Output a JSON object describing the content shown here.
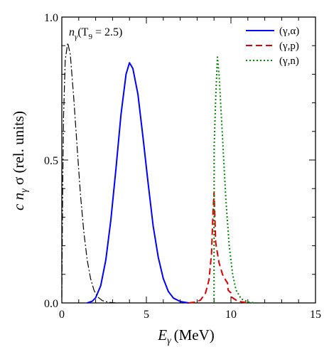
{
  "chart_data": {
    "type": "line",
    "title": "",
    "xlabel": {
      "symbol": "E",
      "subscript": "γ",
      "unit": "(MeV)"
    },
    "ylabel": {
      "parts": [
        "c n",
        "γ",
        " σ (rel. units)"
      ]
    },
    "xlim": [
      0,
      15
    ],
    "ylim": [
      0,
      1.0
    ],
    "xticks": [
      {
        "value": 0,
        "label": "0"
      },
      {
        "value": 5,
        "label": "5"
      },
      {
        "value": 10,
        "label": "10"
      },
      {
        "value": 15,
        "label": "15"
      }
    ],
    "yticks": [
      {
        "value": 0,
        "label": "0.0"
      },
      {
        "value": 0.5,
        "label": "0.5"
      },
      {
        "value": 1.0,
        "label": "1.0"
      }
    ],
    "grid": false,
    "legend": "top-right",
    "annotation": {
      "text_n": "n",
      "text_sub": "γ",
      "text_open": "(T",
      "text_sub2": "9",
      "text_close": " = 2.5)"
    },
    "series": [
      {
        "name": "(γ,α)",
        "color": "#0000ff",
        "dash": "none",
        "in_legend": true,
        "points": [
          [
            1.5,
            0.0
          ],
          [
            1.8,
            0.006
          ],
          [
            2.0,
            0.018
          ],
          [
            2.3,
            0.06
          ],
          [
            2.6,
            0.15
          ],
          [
            2.9,
            0.29
          ],
          [
            3.2,
            0.47
          ],
          [
            3.5,
            0.66
          ],
          [
            3.8,
            0.8
          ],
          [
            4.0,
            0.84
          ],
          [
            4.2,
            0.82
          ],
          [
            4.5,
            0.73
          ],
          [
            4.8,
            0.58
          ],
          [
            5.1,
            0.42
          ],
          [
            5.4,
            0.27
          ],
          [
            5.7,
            0.16
          ],
          [
            6.0,
            0.085
          ],
          [
            6.3,
            0.04
          ],
          [
            6.6,
            0.017
          ],
          [
            7.0,
            0.005
          ],
          [
            7.5,
            0.0
          ]
        ]
      },
      {
        "name": "(γ,p)",
        "color": "#dd0000",
        "dash": "9,5",
        "in_legend": true,
        "points": [
          [
            7.5,
            0.0
          ],
          [
            7.9,
            0.003
          ],
          [
            8.2,
            0.01
          ],
          [
            8.5,
            0.035
          ],
          [
            8.7,
            0.08
          ],
          [
            8.85,
            0.17
          ],
          [
            8.95,
            0.33
          ],
          [
            9.0,
            0.385
          ],
          [
            9.1,
            0.21
          ],
          [
            9.3,
            0.14
          ],
          [
            9.5,
            0.1
          ],
          [
            9.7,
            0.078
          ],
          [
            9.8,
            0.07
          ],
          [
            9.83,
            0.045
          ],
          [
            10.0,
            0.035
          ],
          [
            10.05,
            0.02
          ],
          [
            10.3,
            0.01
          ],
          [
            10.6,
            0.004
          ],
          [
            11.0,
            0.0
          ]
        ]
      },
      {
        "name": "(γ,n)",
        "color": "#008800",
        "dash": "2,3",
        "in_legend": true,
        "points": [
          [
            9.0,
            0.0
          ],
          [
            9.01,
            0.55
          ],
          [
            9.1,
            0.72
          ],
          [
            9.2,
            0.86
          ],
          [
            9.3,
            0.8
          ],
          [
            9.5,
            0.58
          ],
          [
            9.7,
            0.36
          ],
          [
            9.9,
            0.2
          ],
          [
            10.1,
            0.1
          ],
          [
            10.3,
            0.045
          ],
          [
            10.6,
            0.015
          ],
          [
            11.0,
            0.003
          ],
          [
            11.5,
            0.0
          ]
        ]
      },
      {
        "name": "n_γ(T9 = 2.5)",
        "color": "#000000",
        "dash": "10,3,2,3",
        "in_legend": false,
        "points": [
          [
            0.0,
            0.02
          ],
          [
            0.05,
            0.4
          ],
          [
            0.1,
            0.65
          ],
          [
            0.2,
            0.85
          ],
          [
            0.35,
            0.91
          ],
          [
            0.5,
            0.87
          ],
          [
            0.7,
            0.72
          ],
          [
            0.9,
            0.55
          ],
          [
            1.1,
            0.38
          ],
          [
            1.3,
            0.25
          ],
          [
            1.5,
            0.15
          ],
          [
            1.7,
            0.085
          ],
          [
            1.9,
            0.045
          ],
          [
            2.1,
            0.022
          ],
          [
            2.4,
            0.008
          ],
          [
            2.8,
            0.002
          ],
          [
            3.2,
            0.0
          ]
        ]
      }
    ]
  }
}
